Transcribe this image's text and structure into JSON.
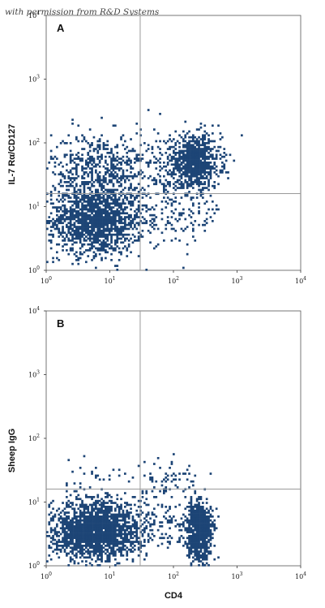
{
  "watermark": "with permission from R&D Systems",
  "chart_data": [
    {
      "type": "scatter",
      "panel_label": "A",
      "xlabel": "",
      "ylabel": "IL-7 Rα/CD127",
      "xscale": "log",
      "yscale": "log",
      "xlim": [
        1,
        10000
      ],
      "ylim": [
        1,
        10000
      ],
      "xticks": [
        "10^0",
        "10^1",
        "10^2",
        "10^3",
        "10^4"
      ],
      "yticks": [
        "10^0",
        "10^1",
        "10^2",
        "10^3",
        "10^4"
      ],
      "quadrant_gates": {
        "x": 30,
        "y": 16
      },
      "dot_color": "#1d4576",
      "populations": [
        {
          "x_center": 6,
          "x_spread": 0.38,
          "y_center": 6,
          "y_spread": 0.27,
          "n": 1500
        },
        {
          "x_center": 7,
          "x_spread": 0.38,
          "y_center": 40,
          "y_spread": 0.28,
          "n": 550
        },
        {
          "x_center": 220,
          "x_spread": 0.2,
          "y_center": 50,
          "y_spread": 0.2,
          "n": 950
        },
        {
          "x_center": 120,
          "x_spread": 0.35,
          "y_center": 8,
          "y_spread": 0.25,
          "n": 140
        },
        {
          "x_center": 70,
          "x_spread": 0.28,
          "y_center": 40,
          "y_spread": 0.3,
          "n": 120
        }
      ]
    },
    {
      "type": "scatter",
      "panel_label": "B",
      "xlabel": "CD4",
      "ylabel": "Sheep IgG",
      "xscale": "log",
      "yscale": "log",
      "xlim": [
        1,
        10000
      ],
      "ylim": [
        1,
        10000
      ],
      "xticks": [
        "10^0",
        "10^1",
        "10^2",
        "10^3",
        "10^4"
      ],
      "yticks": [
        "10^0",
        "10^1",
        "10^2",
        "10^3",
        "10^4"
      ],
      "quadrant_gates": {
        "x": 30,
        "y": 16
      },
      "dot_color": "#1d4576",
      "populations": [
        {
          "x_center": 6,
          "x_spread": 0.35,
          "y_center": 3.5,
          "y_spread": 0.23,
          "n": 2100
        },
        {
          "x_center": 250,
          "x_spread": 0.1,
          "y_center": 3.5,
          "y_spread": 0.22,
          "n": 900
        },
        {
          "x_center": 60,
          "x_spread": 0.3,
          "y_center": 5,
          "y_spread": 0.22,
          "n": 120
        },
        {
          "x_center": 80,
          "x_spread": 0.3,
          "y_center": 22,
          "y_spread": 0.18,
          "n": 70
        },
        {
          "x_center": 7,
          "x_spread": 0.4,
          "y_center": 25,
          "y_spread": 0.2,
          "n": 30
        }
      ]
    }
  ]
}
